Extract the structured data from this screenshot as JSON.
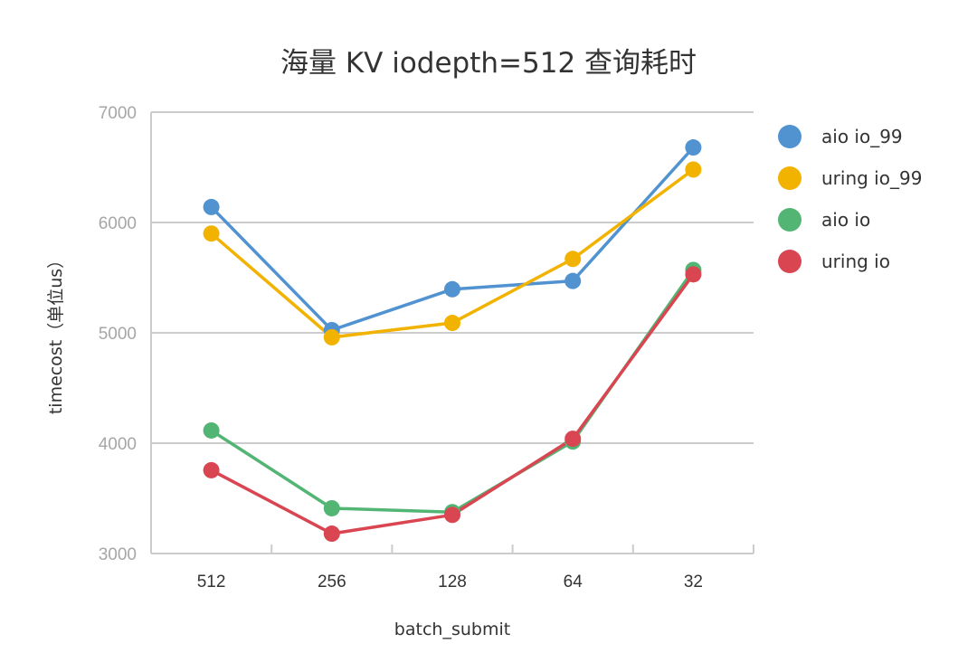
{
  "chart_data": {
    "type": "line",
    "title": "海量 KV iodepth=512 查询耗时",
    "xlabel": "batch_submit",
    "ylabel": "timecost（单位us）",
    "categories": [
      "512",
      "256",
      "128",
      "64",
      "32"
    ],
    "yticks": [
      "7000",
      "6000",
      "5000",
      "4000",
      "3000"
    ],
    "ylim": [
      3000,
      7000
    ],
    "grid": true,
    "legend_position": "right",
    "series": [
      {
        "name": "aio io_99",
        "color": "#5192d0",
        "values": [
          6140,
          5025,
          5395,
          5470,
          6680
        ]
      },
      {
        "name": "uring io_99",
        "color": "#f2b200",
        "values": [
          5900,
          4960,
          5090,
          5670,
          6480
        ]
      },
      {
        "name": "aio io",
        "color": "#52b574",
        "values": [
          4115,
          3410,
          3375,
          4015,
          5570
        ]
      },
      {
        "name": "uring io",
        "color": "#d94651",
        "values": [
          3755,
          3180,
          3350,
          4040,
          5530
        ]
      }
    ]
  }
}
